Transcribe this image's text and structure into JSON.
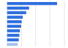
{
  "chart_data": {
    "type": "bar",
    "orientation": "horizontal",
    "categories": [
      null,
      null,
      null,
      null,
      null,
      null,
      null,
      null,
      null,
      null
    ],
    "values": [
      88,
      39,
      34,
      28,
      26,
      25,
      23,
      22,
      21,
      19
    ],
    "colors": [
      "#2f6fde",
      "#2f6fde",
      "#2f6fde",
      "#2f6fde",
      "#2f6fde",
      "#2f6fde",
      "#2f6fde",
      "#2f6fde",
      "#2f6fde",
      "#a9c3ee"
    ],
    "xlim": [
      0,
      100
    ],
    "xticks": [
      0,
      25,
      50,
      75,
      100
    ],
    "grid": true,
    "tick_labels": false
  }
}
